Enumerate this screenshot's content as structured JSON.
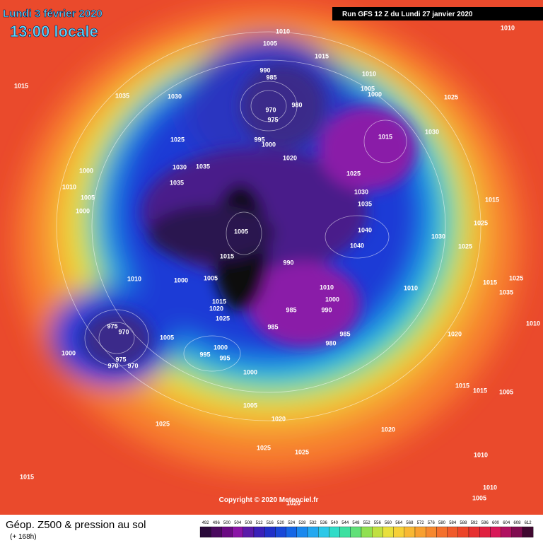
{
  "header": {
    "date": "Lundi 3 février 2020",
    "time": "13:00 locale",
    "run": "Run GFS 12 Z du Lundi 27 janvier 2020"
  },
  "map": {
    "pressure_labels": [
      "1010",
      "1005",
      "1015",
      "1010",
      "1015",
      "1035",
      "1030",
      "990",
      "985",
      "970",
      "975",
      "980",
      "1005",
      "1000",
      "1010",
      "1025",
      "1030",
      "1015",
      "1025",
      "995",
      "1000",
      "1020",
      "1030",
      "1035",
      "1025",
      "1000",
      "1010",
      "1005",
      "1035",
      "1030",
      "1035",
      "1000",
      "1040",
      "1040",
      "1005",
      "1015",
      "1030",
      "1015",
      "1025",
      "1025",
      "990",
      "1010",
      "1000",
      "1005",
      "1010",
      "1010",
      "1035",
      "1015",
      "1025",
      "1015",
      "1020",
      "1025",
      "985",
      "990",
      "1000",
      "975",
      "970",
      "1005",
      "985",
      "985",
      "980",
      "1020",
      "1010",
      "1000",
      "995",
      "1000",
      "995",
      "975",
      "970",
      "970",
      "1000",
      "1015",
      "1015",
      "1005",
      "1005",
      "1020",
      "1020",
      "1025",
      "1025",
      "1025",
      "1010",
      "1015",
      "1010",
      "1005",
      "1020"
    ]
  },
  "copyright": "Copyright © 2020 Meteociel.fr",
  "footer": {
    "title": "Géop. Z500 & pression au sol",
    "subtitle": "(+ 168h)"
  },
  "legend": {
    "values": [
      "492",
      "496",
      "500",
      "504",
      "508",
      "512",
      "516",
      "520",
      "524",
      "528",
      "532",
      "536",
      "540",
      "544",
      "548",
      "552",
      "556",
      "560",
      "564",
      "568",
      "572",
      "576",
      "580",
      "584",
      "588",
      "592",
      "596",
      "600",
      "604",
      "608",
      "612"
    ]
  }
}
